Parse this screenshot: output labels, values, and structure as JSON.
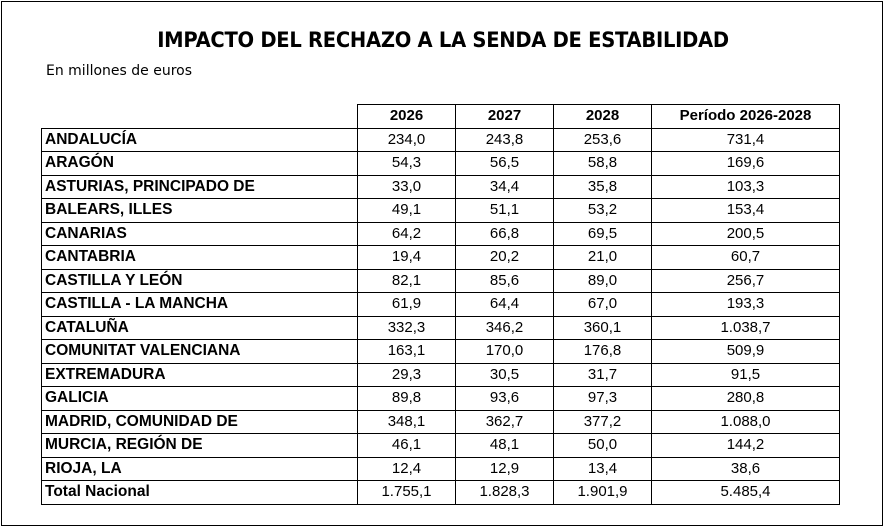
{
  "title": "IMPACTO DEL RECHAZO A LA SENDA DE ESTABILIDAD",
  "subtitle": "En millones de euros",
  "table": {
    "headers": [
      "",
      "2026",
      "2027",
      "2028",
      "Período 2026-2028"
    ],
    "rows": [
      {
        "region": "ANDALUCÍA",
        "v2026": "234,0",
        "v2027": "243,8",
        "v2028": "253,6",
        "period": "731,4"
      },
      {
        "region": "ARAGÓN",
        "v2026": "54,3",
        "v2027": "56,5",
        "v2028": "58,8",
        "period": "169,6"
      },
      {
        "region": "ASTURIAS, PRINCIPADO DE",
        "v2026": "33,0",
        "v2027": "34,4",
        "v2028": "35,8",
        "period": "103,3"
      },
      {
        "region": "BALEARS, ILLES",
        "v2026": "49,1",
        "v2027": "51,1",
        "v2028": "53,2",
        "period": "153,4"
      },
      {
        "region": "CANARIAS",
        "v2026": "64,2",
        "v2027": "66,8",
        "v2028": "69,5",
        "period": "200,5"
      },
      {
        "region": "CANTABRIA",
        "v2026": "19,4",
        "v2027": "20,2",
        "v2028": "21,0",
        "period": "60,7"
      },
      {
        "region": "CASTILLA Y LEÓN",
        "v2026": "82,1",
        "v2027": "85,6",
        "v2028": "89,0",
        "period": "256,7"
      },
      {
        "region": "CASTILLA - LA MANCHA",
        "v2026": "61,9",
        "v2027": "64,4",
        "v2028": "67,0",
        "period": "193,3"
      },
      {
        "region": "CATALUÑA",
        "v2026": "332,3",
        "v2027": "346,2",
        "v2028": "360,1",
        "period": "1.038,7"
      },
      {
        "region": "COMUNITAT VALENCIANA",
        "v2026": "163,1",
        "v2027": "170,0",
        "v2028": "176,8",
        "period": "509,9"
      },
      {
        "region": "EXTREMADURA",
        "v2026": "29,3",
        "v2027": "30,5",
        "v2028": "31,7",
        "period": "91,5"
      },
      {
        "region": "GALICIA",
        "v2026": "89,8",
        "v2027": "93,6",
        "v2028": "97,3",
        "period": "280,8"
      },
      {
        "region": "MADRID, COMUNIDAD DE",
        "v2026": "348,1",
        "v2027": "362,7",
        "v2028": "377,2",
        "period": "1.088,0"
      },
      {
        "region": "MURCIA, REGIÓN DE",
        "v2026": "46,1",
        "v2027": "48,1",
        "v2028": "50,0",
        "period": "144,2"
      },
      {
        "region": "RIOJA, LA",
        "v2026": "12,4",
        "v2027": "12,9",
        "v2028": "13,4",
        "period": "38,6"
      },
      {
        "region": "Total Nacional",
        "v2026": "1.755,1",
        "v2027": "1.828,3",
        "v2028": "1.901,9",
        "period": "5.485,4"
      }
    ]
  }
}
